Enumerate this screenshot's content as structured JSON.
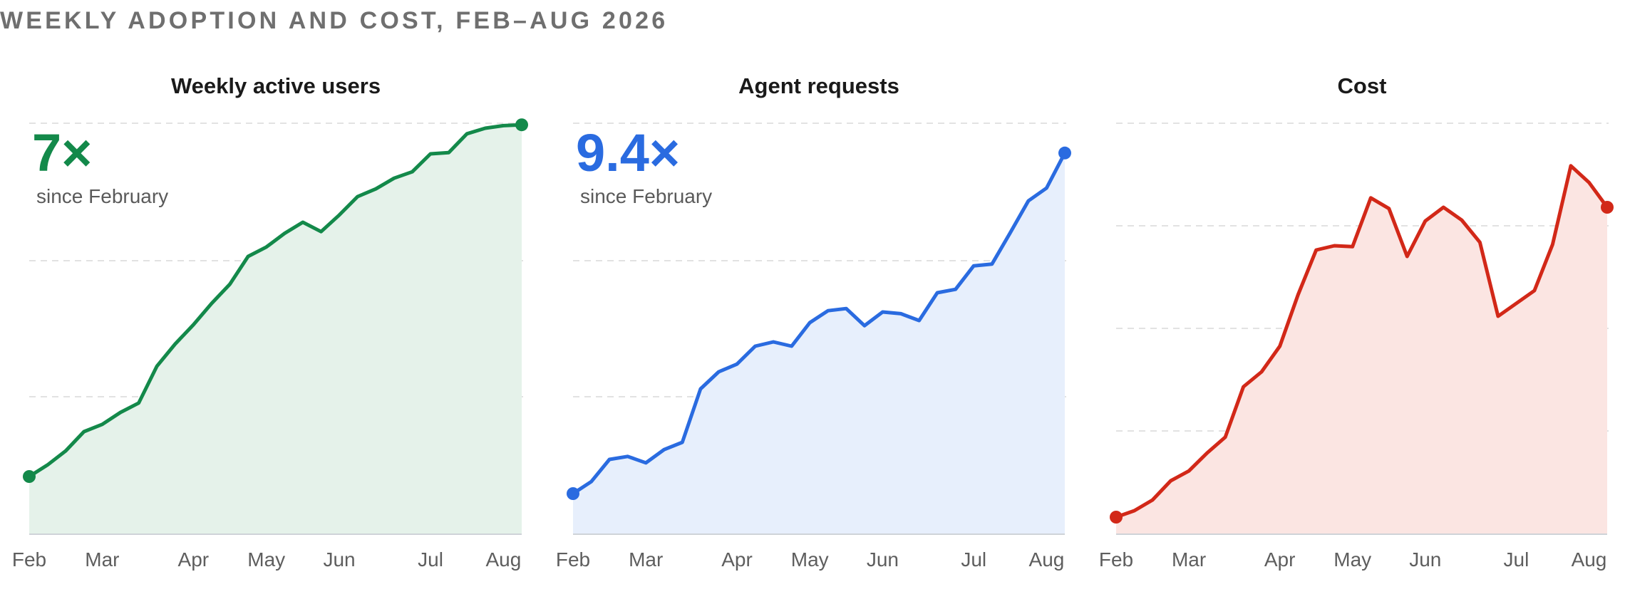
{
  "title": "WEEKLY ADOPTION AND COST, FEB–AUG 2026",
  "chart_data": [
    {
      "type": "area",
      "title": "Weekly active users",
      "callout": {
        "value": "7×",
        "label": "since February"
      },
      "color": "#13894a",
      "fill": "#e5f2ea",
      "x_ticks": [
        "Feb",
        "Mar",
        "Apr",
        "May",
        "Jun",
        "Jul",
        "Aug"
      ],
      "x_tick_weeks": [
        0,
        4,
        9,
        13,
        17,
        22,
        26
      ],
      "ylim": [
        0,
        1
      ],
      "grid": true,
      "values": [
        0.135,
        0.162,
        0.195,
        0.24,
        0.257,
        0.285,
        0.307,
        0.393,
        0.445,
        0.49,
        0.54,
        0.585,
        0.65,
        0.672,
        0.704,
        0.73,
        0.708,
        0.747,
        0.79,
        0.808,
        0.833,
        0.848,
        0.89,
        0.893,
        0.937,
        0.95,
        0.956,
        0.958
      ]
    },
    {
      "type": "area",
      "title": "Agent requests",
      "callout": {
        "value": "9.4×",
        "label": "since February"
      },
      "color": "#2a6be0",
      "fill": "#e7effc",
      "x_ticks": [
        "Feb",
        "Mar",
        "Apr",
        "May",
        "Jun",
        "Jul",
        "Aug"
      ],
      "x_tick_weeks": [
        0,
        4,
        9,
        13,
        17,
        22,
        26
      ],
      "ylim": [
        0,
        1
      ],
      "grid": true,
      "values": [
        0.095,
        0.123,
        0.175,
        0.182,
        0.167,
        0.198,
        0.215,
        0.34,
        0.38,
        0.398,
        0.44,
        0.45,
        0.44,
        0.495,
        0.523,
        0.528,
        0.488,
        0.52,
        0.516,
        0.5,
        0.565,
        0.573,
        0.628,
        0.632,
        0.705,
        0.78,
        0.81,
        0.892
      ]
    },
    {
      "type": "area",
      "title": "Cost",
      "color": "#d22818",
      "fill": "#fbe5e2",
      "x_ticks": [
        "Feb",
        "Mar",
        "Apr",
        "May",
        "Jun",
        "Jul",
        "Aug"
      ],
      "x_tick_weeks": [
        0,
        4,
        9,
        13,
        17,
        22,
        26
      ],
      "ylim": [
        0,
        1
      ],
      "grid": true,
      "values": [
        0.04,
        0.055,
        0.08,
        0.125,
        0.148,
        0.19,
        0.227,
        0.345,
        0.38,
        0.44,
        0.56,
        0.665,
        0.675,
        0.673,
        0.787,
        0.762,
        0.65,
        0.733,
        0.765,
        0.735,
        0.683,
        0.51,
        0.54,
        0.57,
        0.678,
        0.862,
        0.823,
        0.765
      ]
    }
  ]
}
